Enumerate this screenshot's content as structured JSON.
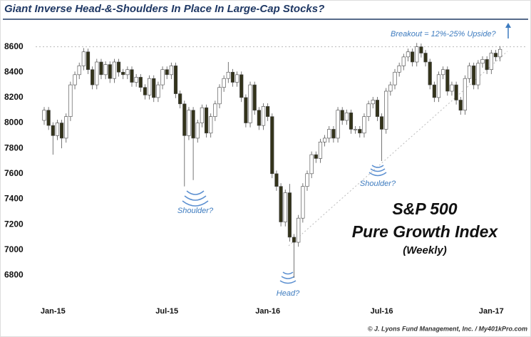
{
  "chart_data": {
    "type": "candlestick",
    "title": "Giant Inverse Head-&-Shoulders In Place In Large-Cap Stocks?",
    "annotations": [
      "Breakout = 12%-25% Upside?",
      "Shoulder?",
      "Shoulder?",
      "Head?",
      "S&P 500",
      "Pure Growth Index",
      "(Weekly)"
    ],
    "credit": "© J. Lyons Fund Management, Inc. / My401kPro.com",
    "ylim": [
      6600,
      8800
    ],
    "yticks": [
      6800,
      7000,
      7200,
      7400,
      7600,
      7800,
      8000,
      8200,
      8400,
      8600
    ],
    "hline": 8600,
    "up_color": "#ffffff",
    "down_color": "#33331a",
    "categories": [
      null,
      null,
      "Jan-15",
      null,
      null,
      null,
      null,
      null,
      null,
      null,
      null,
      null,
      null,
      null,
      null,
      null,
      null,
      null,
      null,
      null,
      null,
      null,
      null,
      null,
      null,
      null,
      null,
      null,
      "Jul-15",
      null,
      null,
      null,
      null,
      null,
      null,
      null,
      null,
      null,
      null,
      null,
      null,
      null,
      null,
      null,
      null,
      null,
      null,
      null,
      null,
      null,
      null,
      "Jan-16",
      null,
      null,
      null,
      null,
      null,
      null,
      null,
      null,
      null,
      null,
      null,
      null,
      null,
      null,
      null,
      null,
      null,
      null,
      null,
      null,
      null,
      null,
      null,
      null,
      null,
      "Jul-16",
      null,
      null,
      null,
      null,
      null,
      null,
      null,
      null,
      null,
      null,
      null,
      null,
      null,
      null,
      null,
      null,
      null,
      null,
      null,
      null,
      null,
      null,
      null,
      null,
      "Jan-17",
      null,
      null
    ],
    "open": [
      8020,
      8100,
      7980,
      7900,
      8000,
      7880,
      8050,
      8300,
      8380,
      8450,
      8560,
      8420,
      8300,
      8480,
      8380,
      8460,
      8350,
      8480,
      8400,
      8380,
      8420,
      8320,
      8360,
      8280,
      8220,
      8350,
      8200,
      8300,
      8420,
      8380,
      8450,
      8230,
      8150,
      7900,
      8100,
      7880,
      8000,
      8120,
      7920,
      8050,
      8150,
      8280,
      8350,
      8400,
      8320,
      8380,
      8200,
      8000,
      8300,
      8100,
      7980,
      8130,
      8050,
      7600,
      7500,
      7220,
      7450,
      7100,
      7060,
      7250,
      7500,
      7600,
      7750,
      7720,
      7850,
      7880,
      7950,
      7880,
      8100,
      8020,
      8080,
      7950,
      7950,
      7920,
      8050,
      8150,
      8180,
      8050,
      7950,
      8250,
      8300,
      8400,
      8450,
      8520,
      8560,
      8480,
      8600,
      8550,
      8480,
      8300,
      8200,
      8380,
      8420,
      8250,
      8300,
      8180,
      8100,
      8350,
      8450,
      8300,
      8470,
      8500,
      8420,
      8550,
      8520
    ],
    "high": [
      8125,
      8125,
      8005,
      8025,
      8025,
      8075,
      8325,
      8405,
      8475,
      8590,
      8585,
      8445,
      8505,
      8505,
      8485,
      8485,
      8505,
      8505,
      8425,
      8445,
      8445,
      8385,
      8385,
      8305,
      8375,
      8375,
      8325,
      8445,
      8445,
      8475,
      8475,
      8255,
      8175,
      8125,
      8125,
      8025,
      8145,
      8145,
      8075,
      8175,
      8305,
      8375,
      8480,
      8425,
      8405,
      8405,
      8225,
      8325,
      8325,
      8125,
      8155,
      8155,
      8075,
      7625,
      7525,
      7475,
      7520,
      7125,
      7275,
      7525,
      7625,
      7775,
      7775,
      7875,
      7905,
      7975,
      7975,
      8125,
      8125,
      8105,
      8105,
      7975,
      7975,
      8075,
      8175,
      8205,
      8205,
      8075,
      8275,
      8325,
      8425,
      8475,
      8545,
      8585,
      8585,
      8630,
      8625,
      8575,
      8505,
      8325,
      8405,
      8445,
      8445,
      8325,
      8325,
      8205,
      8375,
      8475,
      8475,
      8495,
      8525,
      8525,
      8575,
      8575,
      8605
    ],
    "low": [
      7985,
      7945,
      7750,
      7865,
      7800,
      7845,
      8015,
      8265,
      8345,
      8415,
      8385,
      8265,
      8265,
      8345,
      8345,
      8315,
      8315,
      8365,
      8345,
      8345,
      8285,
      8285,
      8245,
      8185,
      8185,
      8165,
      8165,
      8265,
      8345,
      8345,
      8195,
      8115,
      7500,
      7865,
      7550,
      7845,
      7965,
      7885,
      7885,
      8015,
      8115,
      8245,
      8315,
      8285,
      8285,
      8165,
      7965,
      7965,
      8065,
      7945,
      7945,
      8015,
      7565,
      7465,
      7185,
      7185,
      7065,
      6780,
      7025,
      7215,
      7465,
      7565,
      7685,
      7685,
      7815,
      7845,
      7845,
      7845,
      7985,
      7985,
      7915,
      7915,
      7885,
      7885,
      8015,
      8115,
      8015,
      7700,
      7915,
      8215,
      8265,
      8365,
      8415,
      8485,
      8445,
      8445,
      8515,
      8445,
      8265,
      8165,
      8165,
      8345,
      8215,
      8215,
      8145,
      8065,
      8065,
      8315,
      8265,
      8265,
      8435,
      8385,
      8385,
      8485,
      8485
    ],
    "close": [
      8100,
      7980,
      7900,
      8000,
      7880,
      8050,
      8300,
      8380,
      8450,
      8560,
      8420,
      8300,
      8480,
      8380,
      8460,
      8350,
      8480,
      8400,
      8380,
      8420,
      8320,
      8360,
      8280,
      8220,
      8350,
      8200,
      8300,
      8420,
      8380,
      8450,
      8230,
      8150,
      7900,
      8100,
      7880,
      8000,
      8120,
      7920,
      8050,
      8150,
      8280,
      8350,
      8400,
      8320,
      8380,
      8200,
      8000,
      8300,
      8100,
      7980,
      8130,
      8050,
      7600,
      7500,
      7220,
      7450,
      7100,
      7060,
      7250,
      7500,
      7600,
      7750,
      7720,
      7850,
      7880,
      7950,
      7880,
      8100,
      8020,
      8080,
      7950,
      7950,
      7920,
      8050,
      8150,
      8180,
      8050,
      7950,
      8250,
      8300,
      8400,
      8450,
      8520,
      8560,
      8480,
      8600,
      8550,
      8480,
      8300,
      8200,
      8380,
      8420,
      8250,
      8300,
      8180,
      8100,
      8350,
      8450,
      8300,
      8470,
      8500,
      8420,
      8550,
      8520,
      8580
    ]
  }
}
